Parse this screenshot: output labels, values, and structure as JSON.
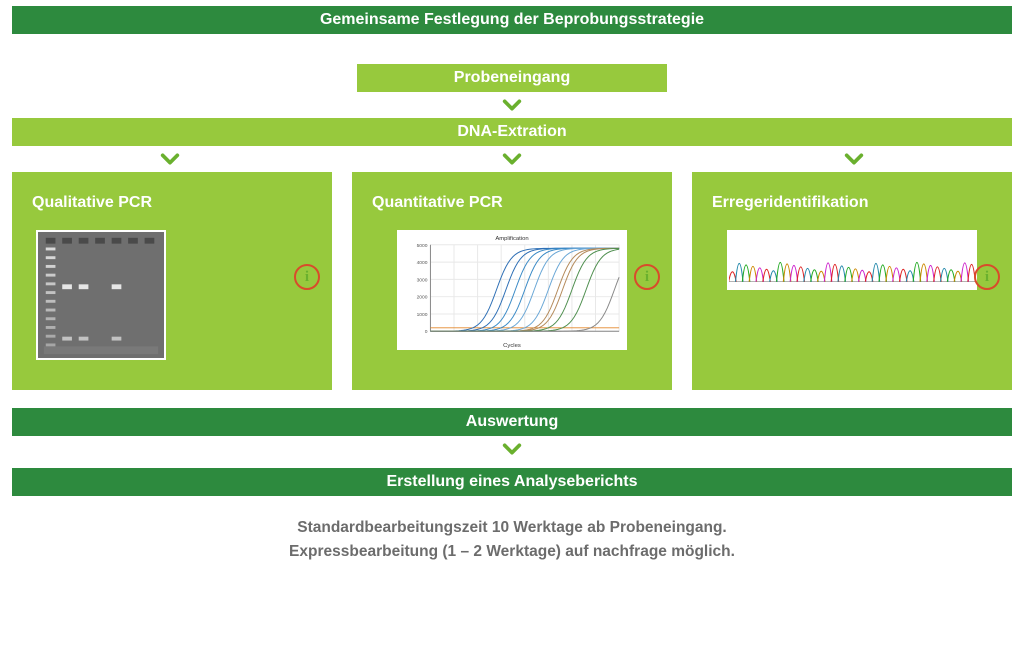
{
  "colors": {
    "dark_green": "#2d8a3e",
    "light_green": "#97c93d",
    "chevron": "#6ab02e",
    "info_border": "#d94b2b",
    "info_text": "#6ab02e",
    "footer_text": "#6c6c6c",
    "white": "#ffffff"
  },
  "bars": {
    "strategy": "Gemeinsame Festlegung der Beprobungsstrategie",
    "intake": "Probeneingang",
    "extraction": "DNA-Extration",
    "evaluation": "Auswertung",
    "report": "Erstellung eines Analyseberichts"
  },
  "panels": {
    "a": {
      "title": "Qualitative PCR"
    },
    "b": {
      "title": "Quantitative PCR"
    },
    "c": {
      "title": "Erregeridentifikation"
    }
  },
  "panel_b_chart": {
    "title": "Amplification",
    "xlabel": "Cycles",
    "xlim": [
      0,
      40
    ],
    "ylim": [
      0,
      5000
    ],
    "yticks": [
      0,
      1000,
      2000,
      3000,
      4000,
      5000
    ],
    "threshold_y": 200,
    "threshold_color": "#e3872b",
    "grid_color": "#e8e8e8",
    "curves": [
      {
        "color": "#2e6fb5",
        "rise": 14
      },
      {
        "color": "#2e6fb5",
        "rise": 16
      },
      {
        "color": "#3a8ac6",
        "rise": 18
      },
      {
        "color": "#3a8ac6",
        "rise": 20
      },
      {
        "color": "#6aa7d6",
        "rise": 22
      },
      {
        "color": "#6aa7d6",
        "rise": 25
      },
      {
        "color": "#b48a5a",
        "rise": 27
      },
      {
        "color": "#b48a5a",
        "rise": 28
      },
      {
        "color": "#4f8f4f",
        "rise": 30
      },
      {
        "color": "#4f8f4f",
        "rise": 33
      },
      {
        "color": "#888888",
        "rise": 39
      }
    ]
  },
  "panel_a_gel": {
    "bg": "#6f6f6f",
    "lane_count": 7,
    "ladder_lane": 0,
    "band_lanes": [
      1,
      2,
      4
    ],
    "band_color": "#e6e6e6"
  },
  "panel_c_trace": {
    "bg": "#ffffff",
    "baseline_color": "#888888",
    "colors": [
      "#d22",
      "#28a",
      "#2a2",
      "#c80",
      "#c2c"
    ],
    "peak_count": 36
  },
  "info_symbol": "i",
  "footer": {
    "line1": "Standardbearbeitungszeit 10 Werktage ab Probeneingang.",
    "line2": "Expressbearbeitung (1 – 2 Werktage) auf nachfrage möglich."
  }
}
